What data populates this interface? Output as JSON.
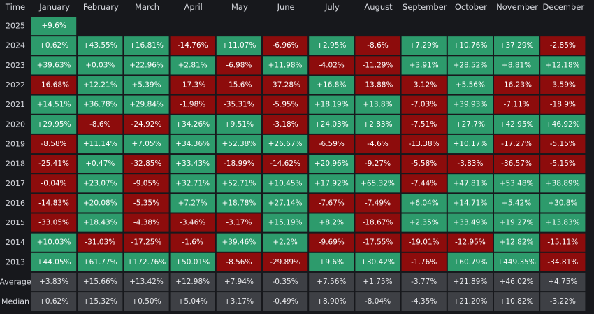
{
  "chart_data": {
    "type": "heatmap",
    "corner_label": "Time",
    "columns": [
      "January",
      "February",
      "March",
      "April",
      "May",
      "June",
      "July",
      "August",
      "September",
      "October",
      "November",
      "December"
    ],
    "rows": [
      {
        "label": "2025",
        "values": [
          "+9.6%"
        ]
      },
      {
        "label": "2024",
        "values": [
          "+0.62%",
          "+43.55%",
          "+16.81%",
          "-14.76%",
          "+11.07%",
          "-6.96%",
          "+2.95%",
          "-8.6%",
          "+7.29%",
          "+10.76%",
          "+37.29%",
          "-2.85%"
        ]
      },
      {
        "label": "2023",
        "values": [
          "+39.63%",
          "+0.03%",
          "+22.96%",
          "+2.81%",
          "-6.98%",
          "+11.98%",
          "-4.02%",
          "-11.29%",
          "+3.91%",
          "+28.52%",
          "+8.81%",
          "+12.18%"
        ]
      },
      {
        "label": "2022",
        "values": [
          "-16.68%",
          "+12.21%",
          "+5.39%",
          "-17.3%",
          "-15.6%",
          "-37.28%",
          "+16.8%",
          "-13.88%",
          "-3.12%",
          "+5.56%",
          "-16.23%",
          "-3.59%"
        ]
      },
      {
        "label": "2021",
        "values": [
          "+14.51%",
          "+36.78%",
          "+29.84%",
          "-1.98%",
          "-35.31%",
          "-5.95%",
          "+18.19%",
          "+13.8%",
          "-7.03%",
          "+39.93%",
          "-7.11%",
          "-18.9%"
        ]
      },
      {
        "label": "2020",
        "values": [
          "+29.95%",
          "-8.6%",
          "-24.92%",
          "+34.26%",
          "+9.51%",
          "-3.18%",
          "+24.03%",
          "+2.83%",
          "-7.51%",
          "+27.7%",
          "+42.95%",
          "+46.92%"
        ]
      },
      {
        "label": "2019",
        "values": [
          "-8.58%",
          "+11.14%",
          "+7.05%",
          "+34.36%",
          "+52.38%",
          "+26.67%",
          "-6.59%",
          "-4.6%",
          "-13.38%",
          "+10.17%",
          "-17.27%",
          "-5.15%"
        ]
      },
      {
        "label": "2018",
        "values": [
          "-25.41%",
          "+0.47%",
          "-32.85%",
          "+33.43%",
          "-18.99%",
          "-14.62%",
          "+20.96%",
          "-9.27%",
          "-5.58%",
          "-3.83%",
          "-36.57%",
          "-5.15%"
        ]
      },
      {
        "label": "2017",
        "values": [
          "-0.04%",
          "+23.07%",
          "-9.05%",
          "+32.71%",
          "+52.71%",
          "+10.45%",
          "+17.92%",
          "+65.32%",
          "-7.44%",
          "+47.81%",
          "+53.48%",
          "+38.89%"
        ]
      },
      {
        "label": "2016",
        "values": [
          "-14.83%",
          "+20.08%",
          "-5.35%",
          "+7.27%",
          "+18.78%",
          "+27.14%",
          "-7.67%",
          "-7.49%",
          "+6.04%",
          "+14.71%",
          "+5.42%",
          "+30.8%"
        ]
      },
      {
        "label": "2015",
        "values": [
          "-33.05%",
          "+18.43%",
          "-4.38%",
          "-3.46%",
          "-3.17%",
          "+15.19%",
          "+8.2%",
          "-18.67%",
          "+2.35%",
          "+33.49%",
          "+19.27%",
          "+13.83%"
        ]
      },
      {
        "label": "2014",
        "values": [
          "+10.03%",
          "-31.03%",
          "-17.25%",
          "-1.6%",
          "+39.46%",
          "+2.2%",
          "-9.69%",
          "-17.55%",
          "-19.01%",
          "-12.95%",
          "+12.82%",
          "-15.11%"
        ]
      },
      {
        "label": "2013",
        "values": [
          "+44.05%",
          "+61.77%",
          "+172.76%",
          "+50.01%",
          "-8.56%",
          "-29.89%",
          "+9.6%",
          "+30.42%",
          "-1.76%",
          "+60.79%",
          "+449.35%",
          "-34.81%"
        ]
      }
    ],
    "summary": [
      {
        "label": "Average",
        "values": [
          "+3.83%",
          "+15.66%",
          "+13.42%",
          "+12.98%",
          "+7.94%",
          "-0.35%",
          "+7.56%",
          "+1.75%",
          "-3.77%",
          "+21.89%",
          "+46.02%",
          "+4.75%"
        ]
      },
      {
        "label": "Median",
        "values": [
          "+0.62%",
          "+15.32%",
          "+0.50%",
          "+5.04%",
          "+3.17%",
          "-0.49%",
          "+8.90%",
          "-8.04%",
          "-4.35%",
          "+21.20%",
          "+10.82%",
          "-3.22%"
        ]
      }
    ],
    "colors": {
      "background": "#17181c",
      "positive": "#2d9b6c",
      "negative": "#8d0c0c",
      "summary": "#3e4045",
      "header_text": "#d7d9df",
      "cell_text": "#ffffff"
    }
  }
}
